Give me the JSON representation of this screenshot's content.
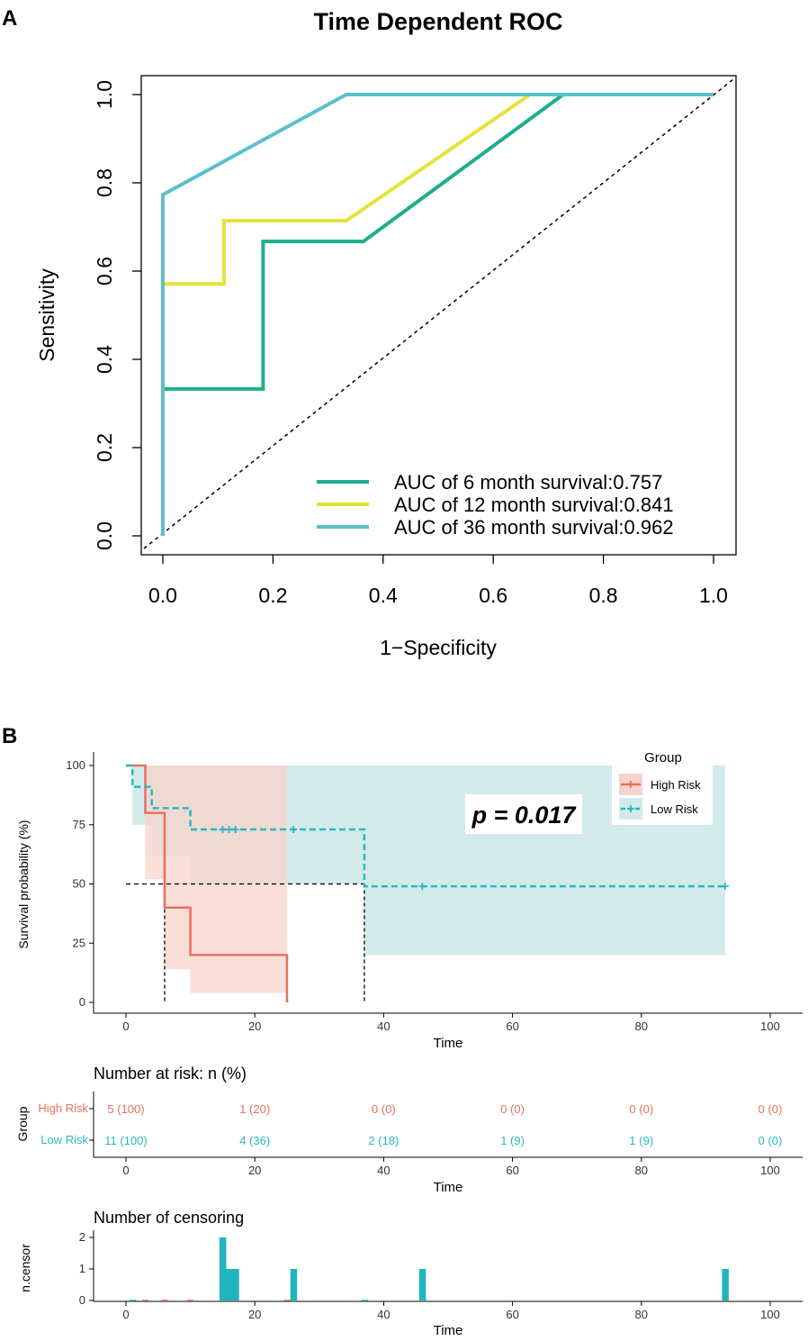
{
  "panel_a": {
    "label": "A",
    "title": "Time Dependent ROC",
    "xlabel": "1−Specificity",
    "ylabel": "Sensitivity",
    "xticks": [
      "0.0",
      "0.2",
      "0.4",
      "0.6",
      "0.8",
      "1.0"
    ],
    "yticks": [
      "0.0",
      "0.2",
      "0.4",
      "0.6",
      "0.8",
      "1.0"
    ],
    "legend": [
      "AUC of 6 month survival:0.757",
      "AUC of 12 month survival:0.841",
      "AUC of 36 month survival:0.962"
    ]
  },
  "panel_b": {
    "label": "B",
    "ylabel": "Survival probability (%)",
    "xlabel": "Time",
    "xticks": [
      "0",
      "20",
      "40",
      "60",
      "80",
      "100"
    ],
    "yticks": [
      "0",
      "25",
      "50",
      "75",
      "100"
    ],
    "pvalue": "p = 0.017",
    "legend_title": "Group",
    "legend": [
      "High Risk",
      "Low Risk"
    ],
    "risk_title": "Number at risk: n (%)",
    "risk_ylabel": "Group",
    "risk_xlabel": "Time",
    "risk_groups": [
      "High Risk",
      "Low Risk"
    ],
    "risk_high": [
      "5 (100)",
      "1 (20)",
      "0 (0)",
      "0 (0)",
      "0 (0)",
      "0 (0)"
    ],
    "risk_low": [
      "11 (100)",
      "4 (36)",
      "2 (18)",
      "1 (9)",
      "1 (9)",
      "0 (0)"
    ],
    "censor_title": "Number of censoring",
    "censor_ylabel": "n.censor",
    "censor_xlabel": "Time",
    "censor_yticks": [
      "0",
      "1",
      "2"
    ]
  },
  "chart_data": [
    {
      "type": "line",
      "title": "Time Dependent ROC",
      "xlabel": "1−Specificity",
      "ylabel": "Sensitivity",
      "xlim": [
        0,
        1
      ],
      "ylim": [
        0,
        1
      ],
      "reference_line": [
        [
          0,
          0
        ],
        [
          1,
          1
        ]
      ],
      "series": [
        {
          "name": "AUC of 6 month survival:0.757",
          "color": "#1fae8c",
          "points": [
            [
              0,
              0
            ],
            [
              0,
              0.333
            ],
            [
              0.182,
              0.333
            ],
            [
              0.182,
              0.667
            ],
            [
              0.364,
              0.667
            ],
            [
              0.727,
              1.0
            ],
            [
              1.0,
              1.0
            ]
          ]
        },
        {
          "name": "AUC of 12 month survival:0.841",
          "color": "#e5e338",
          "points": [
            [
              0,
              0
            ],
            [
              0,
              0.571
            ],
            [
              0.111,
              0.571
            ],
            [
              0.111,
              0.714
            ],
            [
              0.333,
              0.714
            ],
            [
              0.667,
              1.0
            ],
            [
              1.0,
              1.0
            ]
          ]
        },
        {
          "name": "AUC of 36 month survival:0.962",
          "color": "#5bbfcc",
          "points": [
            [
              0,
              0
            ],
            [
              0,
              0.773
            ],
            [
              0.333,
              1.0
            ],
            [
              1.0,
              1.0
            ]
          ]
        }
      ]
    },
    {
      "type": "line",
      "subtype": "kaplan-meier",
      "xlabel": "Time",
      "ylabel": "Survival probability (%)",
      "xlim": [
        0,
        105
      ],
      "ylim": [
        0,
        100
      ],
      "pvalue": "p = 0.017",
      "median_survival": {
        "High Risk": 6,
        "Low Risk": 37
      },
      "series": [
        {
          "name": "High Risk",
          "color": "#e8705f",
          "fill": "#f8d3cb",
          "times": [
            0,
            3,
            6,
            10,
            25
          ],
          "surv": [
            100,
            80,
            40,
            20,
            0
          ],
          "ci_lower": [
            100,
            52,
            14,
            4,
            4
          ],
          "ci_upper": [
            100,
            100,
            100,
            100,
            100
          ],
          "censor_times": []
        },
        {
          "name": "Low Risk",
          "color": "#2ab8c2",
          "fill": "#d3eaea",
          "times": [
            0,
            1,
            4,
            10,
            37,
            93
          ],
          "surv": [
            100,
            91,
            82,
            73,
            49,
            49
          ],
          "ci_lower": [
            100,
            75,
            62,
            50,
            20,
            20
          ],
          "ci_upper": [
            100,
            100,
            100,
            100,
            100,
            100
          ],
          "censor_times": [
            15,
            16,
            17,
            26,
            46,
            93
          ]
        }
      ]
    },
    {
      "type": "table",
      "title": "Number at risk: n (%)",
      "xlabel": "Time",
      "columns": [
        0,
        20,
        40,
        60,
        80,
        100
      ],
      "rows": [
        {
          "group": "High Risk",
          "values": [
            "5 (100)",
            "1 (20)",
            "0 (0)",
            "0 (0)",
            "0 (0)",
            "0 (0)"
          ]
        },
        {
          "group": "Low Risk",
          "values": [
            "11 (100)",
            "4 (36)",
            "2 (18)",
            "1 (9)",
            "1 (9)",
            "0 (0)"
          ]
        }
      ]
    },
    {
      "type": "bar",
      "title": "Number of censoring",
      "xlabel": "Time",
      "ylabel": "n.censor",
      "ylim": [
        0,
        2
      ],
      "series": [
        {
          "name": "Low Risk",
          "color": "#20b5bd",
          "x": [
            15,
            16,
            17,
            26,
            46,
            93
          ],
          "values": [
            2,
            1,
            1,
            1,
            1,
            1
          ]
        },
        {
          "name": "High Risk",
          "color": "#e8705f",
          "x": [
            3,
            6,
            10,
            25
          ],
          "values": [
            0,
            0,
            0,
            0
          ]
        }
      ]
    }
  ]
}
